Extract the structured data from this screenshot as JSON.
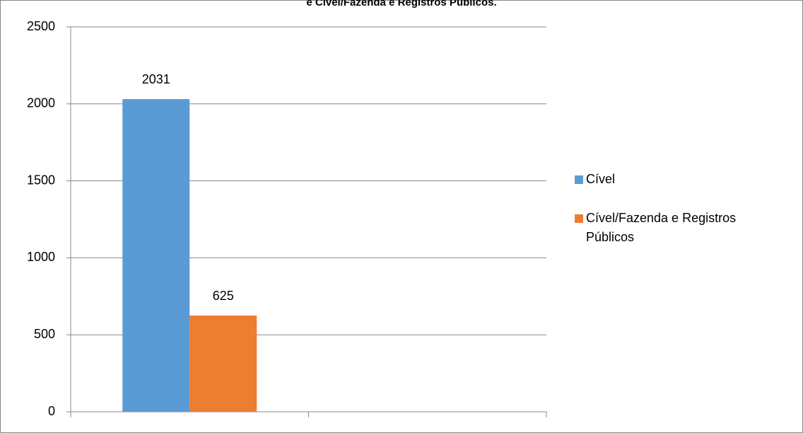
{
  "chart_data": {
    "type": "bar",
    "title": "e Cível/Fazenda e Registros Públicos.",
    "categories": [
      null,
      null
    ],
    "series": [
      {
        "name": "Cível",
        "color": "#5b9bd5",
        "values": [
          2031,
          null
        ]
      },
      {
        "name": "Cível/Fazenda e Registros Públicos",
        "color": "#ed7d31",
        "values": [
          625,
          null
        ]
      }
    ],
    "ylim": [
      0,
      2500
    ],
    "yticks": [
      0,
      500,
      1000,
      1500,
      2000,
      2500
    ],
    "grid": true,
    "legend": "right",
    "data_labels": true
  }
}
